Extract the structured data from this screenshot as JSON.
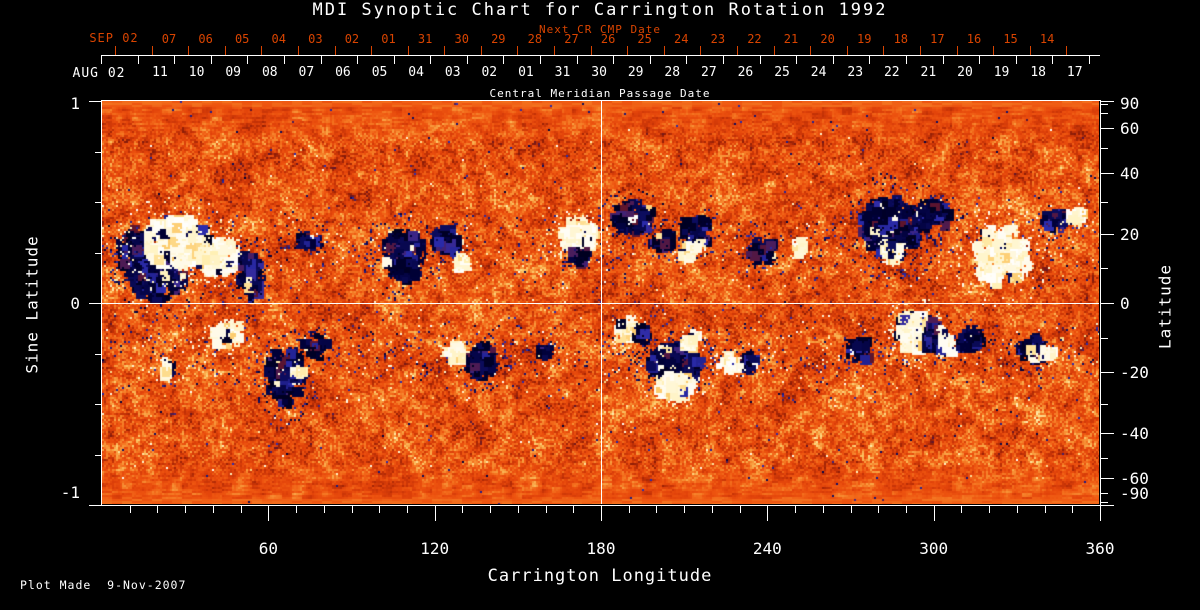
{
  "title": "MDI Synoptic Chart for Carrington Rotation 1992",
  "colors": {
    "background": "#000000",
    "foreground": "#ffffff",
    "next_cr_accent": "#d94400",
    "quiet_sun_orange": "#e74c0c"
  },
  "top_axis": {
    "next_cr_title": "Next CR CMP Date",
    "next_cr_month_year": "SEP 02",
    "next_cr_day_labels": [
      "07",
      "06",
      "05",
      "04",
      "03",
      "02",
      "01",
      "31",
      "30",
      "29",
      "28",
      "27",
      "26",
      "25",
      "24",
      "23",
      "22",
      "21",
      "20",
      "19",
      "18",
      "17",
      "16",
      "15",
      "14"
    ],
    "cmp_title": "Central Meridian Passage Date",
    "cmp_month_year": "AUG 02",
    "cmp_day_labels": [
      "11",
      "10",
      "09",
      "08",
      "07",
      "06",
      "05",
      "04",
      "03",
      "02",
      "01",
      "31",
      "30",
      "29",
      "28",
      "27",
      "26",
      "25",
      "24",
      "23",
      "22",
      "21",
      "20",
      "19",
      "18",
      "17"
    ]
  },
  "left_axis": {
    "title": "Sine Latitude",
    "major_ticks": [
      1,
      0,
      -1
    ],
    "major_labels": [
      "1",
      "0",
      "-1"
    ],
    "minor_ticks": [
      0.75,
      0.5,
      0.25,
      -0.25,
      -0.5,
      -0.75
    ]
  },
  "right_axis": {
    "title": "Latitude",
    "major_ticks": [
      90,
      60,
      40,
      20,
      0,
      -20,
      -40,
      -60,
      -90
    ],
    "minor_ticks": [
      80,
      70,
      50,
      30,
      10,
      -10,
      -30,
      -50,
      -70,
      -80
    ]
  },
  "bottom_axis": {
    "title": "Carrington Longitude",
    "major_ticks": [
      60,
      120,
      180,
      240,
      300,
      360
    ],
    "minor_tick_step_deg": 10,
    "range_deg": [
      0,
      360
    ]
  },
  "annotations": {
    "plot_made": "Plot Made  9-Nov-2007"
  },
  "chart_data": {
    "type": "heatmap",
    "title": "MDI Synoptic Chart for Carrington Rotation 1992",
    "carrington_rotation": 1992,
    "description": "MDI line-of-sight magnetic field synoptic map: orange/red = quiet Sun, white/yellow = positive polarity flux, dark blue/black = negative polarity flux",
    "x": {
      "label": "Carrington Longitude",
      "range": [
        0,
        360
      ]
    },
    "y": {
      "label": "Sine Latitude",
      "range": [
        -1,
        1
      ]
    },
    "y_right": {
      "label": "Latitude",
      "range": [
        -90,
        90
      ]
    },
    "reference_lines": {
      "longitude": 180,
      "sine_latitude": 0
    },
    "colormap": [
      {
        "v": 0.0,
        "color": "#000010"
      },
      {
        "v": 0.055,
        "color": "#000038"
      },
      {
        "v": 0.1,
        "color": "#10106a"
      },
      {
        "v": 0.145,
        "color": "#2d2dae"
      },
      {
        "v": 0.175,
        "color": "#5a1430"
      },
      {
        "v": 0.21,
        "color": "#8c1c06"
      },
      {
        "v": 0.32,
        "color": "#c23106"
      },
      {
        "v": 0.44,
        "color": "#e2430a"
      },
      {
        "v": 0.56,
        "color": "#ee5510"
      },
      {
        "v": 0.66,
        "color": "#f47420"
      },
      {
        "v": 0.76,
        "color": "#f89c3e"
      },
      {
        "v": 0.845,
        "color": "#fcc868"
      },
      {
        "v": 0.91,
        "color": "#fff0b4"
      },
      {
        "v": 1.0,
        "color": "#ffffff"
      }
    ],
    "active_regions": [
      {
        "lon": 19.8,
        "sin_lat": 0.156,
        "hw_deg": 10.1,
        "hh_sin": 0.139,
        "polarity": "negative",
        "strength": 1.0
      },
      {
        "lon": 11.9,
        "sin_lat": 0.256,
        "hw_deg": 6.5,
        "hh_sin": 0.109,
        "polarity": "negative",
        "strength": 1.0
      },
      {
        "lon": 27.1,
        "sin_lat": 0.305,
        "hw_deg": 12.6,
        "hh_sin": 0.124,
        "polarity": "positive",
        "strength": 1.2
      },
      {
        "lon": 41.5,
        "sin_lat": 0.231,
        "hw_deg": 7.9,
        "hh_sin": 0.089,
        "polarity": "positive",
        "strength": 1.2
      },
      {
        "lon": 53.4,
        "sin_lat": 0.132,
        "hw_deg": 4.3,
        "hh_sin": 0.124,
        "polarity": "negative",
        "strength": 1.0
      },
      {
        "lon": 74.0,
        "sin_lat": 0.305,
        "hw_deg": 3.6,
        "hh_sin": 0.04,
        "polarity": "negative",
        "strength": 1.0
      },
      {
        "lon": 108.2,
        "sin_lat": 0.231,
        "hw_deg": 7.9,
        "hh_sin": 0.124,
        "polarity": "negative",
        "strength": 0.8
      },
      {
        "lon": 124.4,
        "sin_lat": 0.305,
        "hw_deg": 5.4,
        "hh_sin": 0.06,
        "polarity": "negative",
        "strength": 1.0
      },
      {
        "lon": 129.9,
        "sin_lat": 0.206,
        "hw_deg": 2.9,
        "hh_sin": 0.03,
        "polarity": "positive",
        "strength": 1.0
      },
      {
        "lon": 171.3,
        "sin_lat": 0.33,
        "hw_deg": 6.5,
        "hh_sin": 0.079,
        "polarity": "positive",
        "strength": 1.2
      },
      {
        "lon": 172.4,
        "sin_lat": 0.231,
        "hw_deg": 3.6,
        "hh_sin": 0.04,
        "polarity": "negative",
        "strength": 1.0
      },
      {
        "lon": 191.2,
        "sin_lat": 0.429,
        "hw_deg": 7.2,
        "hh_sin": 0.079,
        "polarity": "negative",
        "strength": 1.0
      },
      {
        "lon": 202.0,
        "sin_lat": 0.305,
        "hw_deg": 4.3,
        "hh_sin": 0.05,
        "polarity": "negative",
        "strength": 1.0
      },
      {
        "lon": 214.6,
        "sin_lat": 0.355,
        "hw_deg": 5.1,
        "hh_sin": 0.069,
        "polarity": "negative",
        "strength": 1.0
      },
      {
        "lon": 212.1,
        "sin_lat": 0.256,
        "hw_deg": 3.6,
        "hh_sin": 0.04,
        "polarity": "positive",
        "strength": 1.0
      },
      {
        "lon": 238.1,
        "sin_lat": 0.256,
        "hw_deg": 5.1,
        "hh_sin": 0.06,
        "polarity": "negative",
        "strength": 1.0
      },
      {
        "lon": 252.5,
        "sin_lat": 0.28,
        "hw_deg": 2.9,
        "hh_sin": 0.04,
        "polarity": "positive",
        "strength": 1.0
      },
      {
        "lon": 285.0,
        "sin_lat": 0.38,
        "hw_deg": 10.8,
        "hh_sin": 0.149,
        "polarity": "negative",
        "strength": 0.9
      },
      {
        "lon": 299.4,
        "sin_lat": 0.429,
        "hw_deg": 6.5,
        "hh_sin": 0.069,
        "polarity": "negative",
        "strength": 1.0
      },
      {
        "lon": 285.0,
        "sin_lat": 0.256,
        "hw_deg": 3.2,
        "hh_sin": 0.045,
        "polarity": "positive",
        "strength": 1.3
      },
      {
        "lon": 324.6,
        "sin_lat": 0.231,
        "hw_deg": 10.1,
        "hh_sin": 0.149,
        "polarity": "positive",
        "strength": 0.7
      },
      {
        "lon": 344.5,
        "sin_lat": 0.404,
        "hw_deg": 5.1,
        "hh_sin": 0.05,
        "polarity": "negative",
        "strength": 1.0
      },
      {
        "lon": 351.7,
        "sin_lat": 0.429,
        "hw_deg": 3.6,
        "hh_sin": 0.04,
        "polarity": "positive",
        "strength": 1.0
      },
      {
        "lon": 66.0,
        "sin_lat": -0.36,
        "hw_deg": 6.5,
        "hh_sin": 0.14,
        "polarity": "negative",
        "strength": 0.9
      },
      {
        "lon": 22.7,
        "sin_lat": -0.33,
        "hw_deg": 3.0,
        "hh_sin": 0.05,
        "polarity": "positive",
        "strength": 0.7
      },
      {
        "lon": 46.0,
        "sin_lat": -0.16,
        "hw_deg": 6.0,
        "hh_sin": 0.07,
        "polarity": "positive",
        "strength": 0.6
      },
      {
        "lon": 69.6,
        "sin_lat": -0.34,
        "hw_deg": 2.5,
        "hh_sin": 0.035,
        "polarity": "positive",
        "strength": 1.0
      },
      {
        "lon": 76.8,
        "sin_lat": -0.21,
        "hw_deg": 4.0,
        "hh_sin": 0.06,
        "polarity": "negative",
        "strength": 0.8
      },
      {
        "lon": 128.1,
        "sin_lat": -0.241,
        "hw_deg": 4.3,
        "hh_sin": 0.05,
        "polarity": "positive",
        "strength": 1.0
      },
      {
        "lon": 137.1,
        "sin_lat": -0.29,
        "hw_deg": 5.0,
        "hh_sin": 0.089,
        "polarity": "negative",
        "strength": 1.0
      },
      {
        "lon": 158.7,
        "sin_lat": -0.241,
        "hw_deg": 2.9,
        "hh_sin": 0.035,
        "polarity": "negative",
        "strength": 1.0
      },
      {
        "lon": 189.4,
        "sin_lat": -0.131,
        "hw_deg": 4.3,
        "hh_sin": 0.05,
        "polarity": "positive",
        "strength": 1.2
      },
      {
        "lon": 194.8,
        "sin_lat": -0.151,
        "hw_deg": 2.9,
        "hh_sin": 0.035,
        "polarity": "negative",
        "strength": 1.0
      },
      {
        "lon": 206.4,
        "sin_lat": -0.3,
        "hw_deg": 9.4,
        "hh_sin": 0.089,
        "polarity": "negative",
        "strength": 1.5
      },
      {
        "lon": 206.4,
        "sin_lat": -0.414,
        "hw_deg": 6.5,
        "hh_sin": 0.06,
        "polarity": "positive",
        "strength": 1.5
      },
      {
        "lon": 212.1,
        "sin_lat": -0.181,
        "hw_deg": 3.6,
        "hh_sin": 0.04,
        "polarity": "positive",
        "strength": 1.0
      },
      {
        "lon": 226.6,
        "sin_lat": -0.3,
        "hw_deg": 4.3,
        "hh_sin": 0.045,
        "polarity": "positive",
        "strength": 1.0
      },
      {
        "lon": 232.7,
        "sin_lat": -0.29,
        "hw_deg": 3.6,
        "hh_sin": 0.045,
        "polarity": "negative",
        "strength": 1.0
      },
      {
        "lon": 273.4,
        "sin_lat": -0.231,
        "hw_deg": 4.3,
        "hh_sin": 0.06,
        "polarity": "negative",
        "strength": 1.0
      },
      {
        "lon": 292.9,
        "sin_lat": -0.141,
        "hw_deg": 5.8,
        "hh_sin": 0.099,
        "polarity": "positive",
        "strength": 1.5
      },
      {
        "lon": 300.1,
        "sin_lat": -0.166,
        "hw_deg": 4.3,
        "hh_sin": 0.079,
        "polarity": "negative",
        "strength": 1.3
      },
      {
        "lon": 304.8,
        "sin_lat": -0.216,
        "hw_deg": 2.9,
        "hh_sin": 0.04,
        "polarity": "positive",
        "strength": 1.0
      },
      {
        "lon": 313.1,
        "sin_lat": -0.181,
        "hw_deg": 5.0,
        "hh_sin": 0.05,
        "polarity": "negative",
        "strength": 1.0
      },
      {
        "lon": 335.5,
        "sin_lat": -0.231,
        "hw_deg": 5.0,
        "hh_sin": 0.06,
        "polarity": "negative",
        "strength": 1.0
      },
      {
        "lon": 340.9,
        "sin_lat": -0.251,
        "hw_deg": 2.9,
        "hh_sin": 0.03,
        "polarity": "positive",
        "strength": 1.0
      }
    ]
  }
}
